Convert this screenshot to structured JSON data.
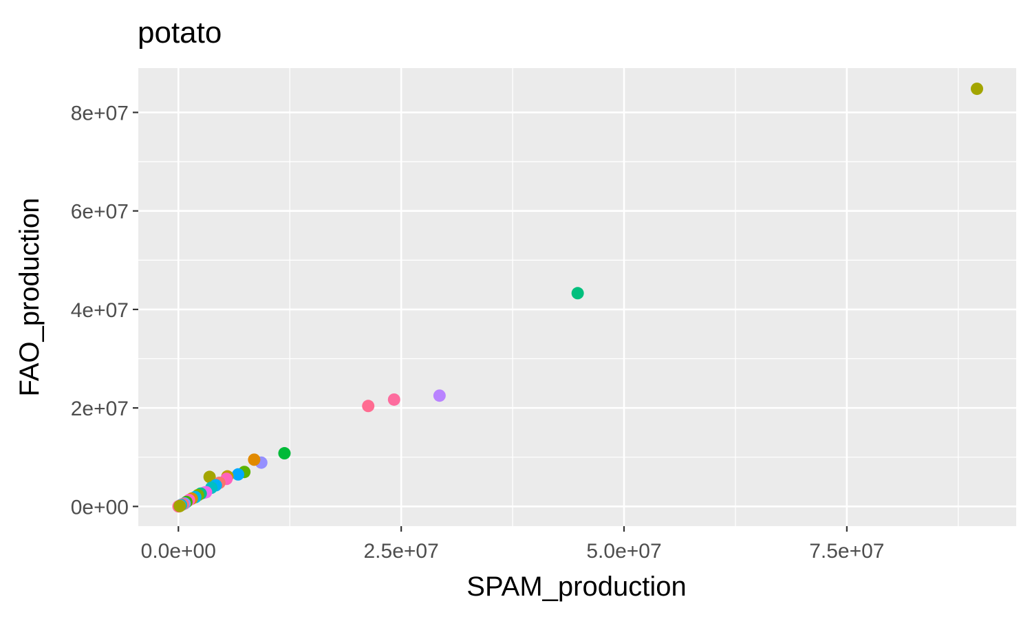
{
  "chart_data": {
    "type": "scatter",
    "title": "potato",
    "xlabel": "SPAM_production",
    "ylabel": "FAO_production",
    "xlim": [
      -4500000,
      94000000
    ],
    "ylim": [
      -4000000,
      89000000
    ],
    "x_ticks": [
      {
        "value": 0,
        "label": "0.0e+00"
      },
      {
        "value": 25000000,
        "label": "2.5e+07"
      },
      {
        "value": 50000000,
        "label": "5.0e+07"
      },
      {
        "value": 75000000,
        "label": "7.5e+07"
      }
    ],
    "y_ticks": [
      {
        "value": 0,
        "label": "0e+00"
      },
      {
        "value": 20000000,
        "label": "2e+07"
      },
      {
        "value": 40000000,
        "label": "4e+07"
      },
      {
        "value": 60000000,
        "label": "6e+07"
      },
      {
        "value": 80000000,
        "label": "8e+07"
      }
    ],
    "grid": true,
    "legend": "none",
    "background": "#ebebeb",
    "points": [
      {
        "x": 89600000,
        "y": 84800000,
        "color": "#a3a500"
      },
      {
        "x": 44800000,
        "y": 43300000,
        "color": "#00bf7d"
      },
      {
        "x": 29300000,
        "y": 22500000,
        "color": "#b983ff"
      },
      {
        "x": 24200000,
        "y": 21700000,
        "color": "#fd6c9e"
      },
      {
        "x": 21300000,
        "y": 20400000,
        "color": "#ff6c91"
      },
      {
        "x": 11900000,
        "y": 10800000,
        "color": "#00ba38"
      },
      {
        "x": 9300000,
        "y": 8900000,
        "color": "#9590ff"
      },
      {
        "x": 8500000,
        "y": 9500000,
        "color": "#e18a00"
      },
      {
        "x": 7400000,
        "y": 7000000,
        "color": "#5bb300"
      },
      {
        "x": 6700000,
        "y": 6500000,
        "color": "#00a9ff"
      },
      {
        "x": 5500000,
        "y": 6100000,
        "color": "#be9c00"
      },
      {
        "x": 5400000,
        "y": 5600000,
        "color": "#ff62bc"
      },
      {
        "x": 3500000,
        "y": 6000000,
        "color": "#a3a500"
      },
      {
        "x": 4600000,
        "y": 4800000,
        "color": "#f8766d"
      },
      {
        "x": 4200000,
        "y": 4300000,
        "color": "#00b0f6"
      },
      {
        "x": 3700000,
        "y": 3800000,
        "color": "#00bfc4"
      },
      {
        "x": 3100000,
        "y": 2900000,
        "color": "#f564e3"
      },
      {
        "x": 2900000,
        "y": 2800000,
        "color": "#e76bf3"
      },
      {
        "x": 2500000,
        "y": 2600000,
        "color": "#00c08b"
      },
      {
        "x": 2200000,
        "y": 2300000,
        "color": "#7cae00"
      },
      {
        "x": 1900000,
        "y": 1900000,
        "color": "#00b8e7"
      },
      {
        "x": 1500000,
        "y": 1600000,
        "color": "#d89000"
      },
      {
        "x": 1200000,
        "y": 1300000,
        "color": "#ff61c3"
      },
      {
        "x": 900000,
        "y": 900000,
        "color": "#39b600"
      },
      {
        "x": 700000,
        "y": 600000,
        "color": "#8494ff"
      },
      {
        "x": 500000,
        "y": 450000,
        "color": "#fc717f"
      },
      {
        "x": 300000,
        "y": 300000,
        "color": "#00bcd8"
      },
      {
        "x": 150000,
        "y": 150000,
        "color": "#ff65ae"
      },
      {
        "x": 60000,
        "y": 60000,
        "color": "#db72fb"
      },
      {
        "x": 10000,
        "y": 10000,
        "color": "#ff6a98"
      },
      {
        "x": 150000,
        "y": 80000,
        "color": "#a3a500"
      }
    ]
  }
}
